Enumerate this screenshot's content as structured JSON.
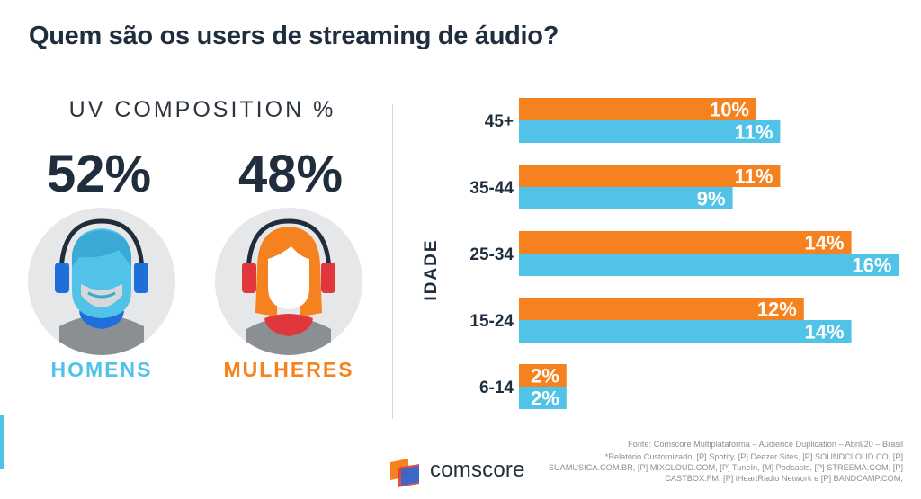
{
  "title": "Quem são os users de streaming de áudio?",
  "uv_composition": {
    "label": "UV COMPOSITION %",
    "men": {
      "pct": "52%",
      "label": "HOMENS"
    },
    "women": {
      "pct": "48%",
      "label": "MULHERES"
    }
  },
  "colors": {
    "men": "#52c3e8",
    "women": "#f5821f",
    "text": "#1f2d3d"
  },
  "icons": {
    "men": "man-with-headphones-icon",
    "women": "woman-with-headphones-icon",
    "logo": "comscore-logo-icon"
  },
  "chart_data": {
    "type": "bar",
    "orientation": "horizontal",
    "ylabel": "IDADE",
    "categories": [
      "45+",
      "35-44",
      "25-34",
      "15-24",
      "6-14"
    ],
    "series": [
      {
        "color": "#f5821f",
        "values": [
          10,
          11,
          14,
          12,
          2
        ]
      },
      {
        "color": "#52c3e8",
        "values": [
          11,
          9,
          16,
          14,
          2
        ]
      }
    ],
    "xlim": [
      0,
      16
    ],
    "value_suffix": "%",
    "grid": false
  },
  "footer": {
    "source": "Fonte: Comscore  Multiplataforma – Audience Duplication – Abril/20 – Brasil",
    "note": "*Relatório Customizado: [P] Spotify, [P] Deezer Sites, [P] SOUNDCLOUD.CO, [P] SUAMUSICA.COM.BR, [P] MIXCLOUD.COM, [P] TuneIn, [M] Podcasts, [P] STREEMA.COM, [P] CASTBOX.FM, [P] iHeartRadio Network e [P] BANDCAMP.COM;"
  },
  "brand": {
    "name": "comscore"
  }
}
